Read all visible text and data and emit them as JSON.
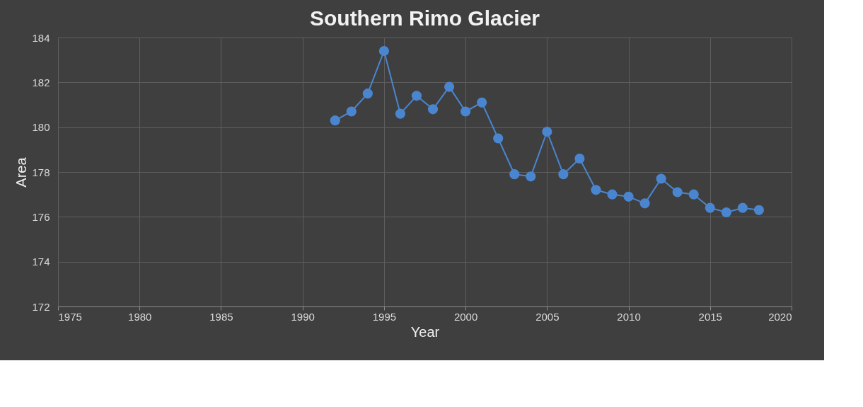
{
  "chart_data": {
    "type": "line",
    "title": "Southern Rimo Glacier",
    "xlabel": "Year",
    "ylabel": "Area",
    "x": [
      1992,
      1993,
      1994,
      1995,
      1996,
      1997,
      1998,
      1999,
      2000,
      2001,
      2002,
      2003,
      2004,
      2005,
      2006,
      2007,
      2008,
      2009,
      2010,
      2011,
      2012,
      2013,
      2014,
      2015,
      2016,
      2017,
      2018
    ],
    "series": [
      {
        "color": "#4a86d0",
        "values": [
          180.3,
          180.7,
          181.5,
          183.4,
          180.6,
          181.4,
          180.8,
          181.8,
          180.7,
          181.1,
          179.5,
          177.9,
          177.8,
          179.8,
          177.9,
          178.6,
          177.2,
          177.0,
          176.9,
          176.6,
          177.7,
          177.1,
          177.0,
          176.4,
          176.2,
          176.4,
          176.3
        ]
      }
    ],
    "xlim": [
      1975,
      2020
    ],
    "xticks": [
      1975,
      1980,
      1985,
      1990,
      1995,
      2000,
      2005,
      2010,
      2015,
      2020
    ],
    "ylim": [
      172,
      184
    ],
    "yticks": [
      172,
      174,
      176,
      178,
      180,
      182,
      184
    ],
    "grid": true,
    "marker": "circle",
    "line_style": "solid",
    "legend": false
  }
}
